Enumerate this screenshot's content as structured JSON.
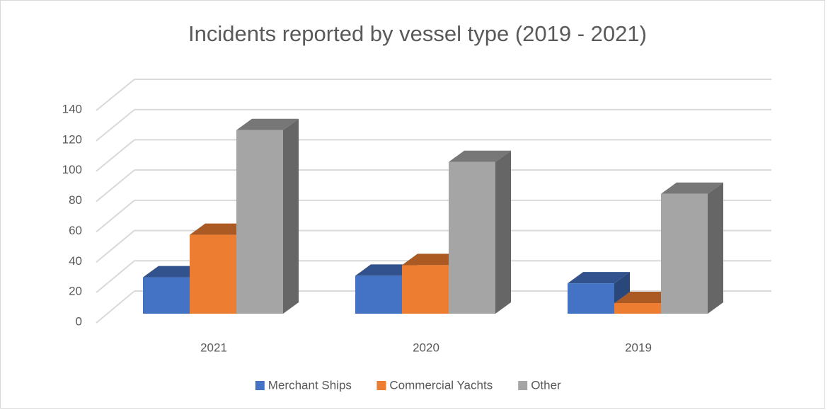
{
  "chart_data": {
    "type": "bar3d",
    "title": "Incidents reported by vessel type (2019 - 2021)",
    "categories": [
      "2021",
      "2020",
      "2019"
    ],
    "series": [
      {
        "name": "Merchant Ships",
        "color": "#4472c4",
        "values": [
          24,
          25,
          20
        ]
      },
      {
        "name": "Commercial Yachts",
        "color": "#ed7d31",
        "values": [
          52,
          32,
          7
        ]
      },
      {
        "name": "Other",
        "color": "#a5a5a5",
        "values": [
          121,
          100,
          79
        ]
      }
    ],
    "ylim": [
      0,
      140
    ],
    "yticks": [
      0,
      20,
      40,
      60,
      80,
      100,
      120,
      140
    ],
    "grid": true,
    "legend": "bottom"
  }
}
